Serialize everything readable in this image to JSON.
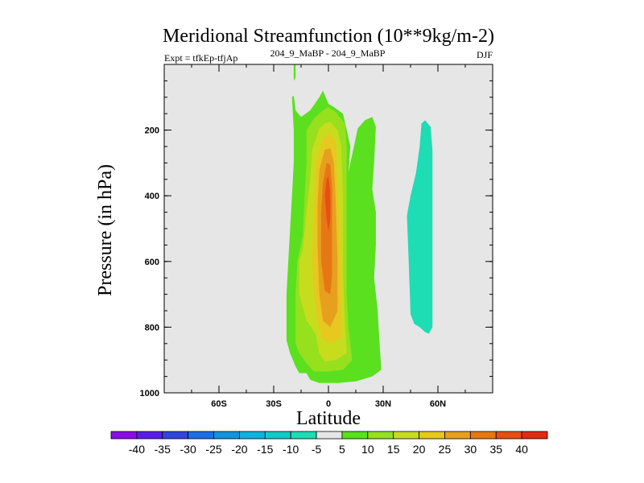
{
  "chart_data": {
    "type": "contour",
    "title": "Meridional Streamfunction (10**9kg/m-2)",
    "subtitle_left": "Expt = tfkEp-tfjAp",
    "subtitle_center": "204_9_MaBP - 204_9_MaBP",
    "subtitle_right": "DJF",
    "xlabel": "Latitude",
    "ylabel": "Pressure (in hPa)",
    "xlim": [
      -90,
      90
    ],
    "ylim": [
      0,
      1000
    ],
    "y_inverted": true,
    "x_ticks": [
      {
        "value": -60,
        "label": "60S"
      },
      {
        "value": -30,
        "label": "30S"
      },
      {
        "value": 0,
        "label": "0"
      },
      {
        "value": 30,
        "label": "30N"
      },
      {
        "value": 60,
        "label": "60N"
      }
    ],
    "y_ticks": [
      {
        "value": 200,
        "label": "200"
      },
      {
        "value": 400,
        "label": "400"
      },
      {
        "value": 600,
        "label": "600"
      },
      {
        "value": 800,
        "label": "800"
      },
      {
        "value": 1000,
        "label": "1000"
      }
    ],
    "background_color": "#e6e6e6",
    "colorbar": {
      "labels": [
        "-40",
        "-35",
        "-30",
        "-25",
        "-20",
        "-15",
        "-10",
        "-5",
        "5",
        "10",
        "15",
        "20",
        "25",
        "30",
        "35",
        "40"
      ],
      "colors": [
        "#8a0ee6",
        "#5a1ee6",
        "#3246dc",
        "#1e6ee6",
        "#1492dc",
        "#0ab4dc",
        "#14c8c8",
        "#1edcb4",
        "#e6e6e6",
        "#5ae01e",
        "#96e01e",
        "#c8dc1e",
        "#e6c81e",
        "#e6a01e",
        "#e67814",
        "#e65014",
        "#e62814"
      ]
    },
    "regions": [
      {
        "level": "5 to 10",
        "color": "#5ae01e",
        "points": [
          [
            -20,
            100
          ],
          [
            -19,
            95
          ],
          [
            -18,
            140
          ],
          [
            -15,
            160
          ],
          [
            -10,
            140
          ],
          [
            -5,
            100
          ],
          [
            -3,
            80
          ],
          [
            0,
            120
          ],
          [
            3,
            130
          ],
          [
            8,
            150
          ],
          [
            10,
            200
          ],
          [
            12,
            250
          ],
          [
            11,
            330
          ],
          [
            12,
            300
          ],
          [
            14,
            250
          ],
          [
            16,
            195
          ],
          [
            20,
            170
          ],
          [
            24,
            160
          ],
          [
            26,
            190
          ],
          [
            25,
            300
          ],
          [
            24,
            380
          ],
          [
            26,
            450
          ],
          [
            26,
            550
          ],
          [
            25,
            650
          ],
          [
            27,
            750
          ],
          [
            28,
            850
          ],
          [
            29,
            930
          ],
          [
            24,
            950
          ],
          [
            15,
            965
          ],
          [
            5,
            970
          ],
          [
            -5,
            970
          ],
          [
            -10,
            960
          ],
          [
            -12,
            940
          ],
          [
            -16,
            940
          ],
          [
            -18,
            920
          ],
          [
            -21,
            880
          ],
          [
            -23,
            840
          ],
          [
            -23,
            700
          ],
          [
            -22,
            600
          ],
          [
            -21,
            500
          ],
          [
            -20,
            400
          ],
          [
            -19,
            300
          ],
          [
            -19,
            200
          ]
        ]
      },
      {
        "level": "5 to 10",
        "color": "#5ae01e",
        "points": [
          [
            -19,
            0
          ],
          [
            -18,
            0
          ],
          [
            -18,
            40
          ],
          [
            -19,
            50
          ]
        ]
      },
      {
        "level": "10 to 15",
        "color": "#96e01e",
        "points": [
          [
            -12,
            200
          ],
          [
            -8,
            165
          ],
          [
            -3,
            140
          ],
          [
            0,
            130
          ],
          [
            4,
            145
          ],
          [
            9,
            180
          ],
          [
            10,
            250
          ],
          [
            10,
            400
          ],
          [
            10,
            700
          ],
          [
            11,
            800
          ],
          [
            13,
            900
          ],
          [
            8,
            930
          ],
          [
            0,
            935
          ],
          [
            -8,
            935
          ],
          [
            -12,
            910
          ],
          [
            -16,
            880
          ],
          [
            -18,
            850
          ],
          [
            -18,
            800
          ],
          [
            -18,
            700
          ],
          [
            -17,
            600
          ],
          [
            -14,
            520
          ],
          [
            -13,
            400
          ],
          [
            -12,
            300
          ]
        ]
      },
      {
        "level": "15 to 20",
        "color": "#c8dc1e",
        "points": [
          [
            -9,
            260
          ],
          [
            -5,
            195
          ],
          [
            -2,
            180
          ],
          [
            1,
            175
          ],
          [
            5,
            200
          ],
          [
            7,
            250
          ],
          [
            8,
            400
          ],
          [
            8,
            650
          ],
          [
            9,
            780
          ],
          [
            10,
            880
          ],
          [
            4,
            900
          ],
          [
            -2,
            905
          ],
          [
            -5,
            880
          ],
          [
            -7,
            820
          ],
          [
            -12,
            780
          ],
          [
            -14,
            740
          ],
          [
            -16,
            700
          ],
          [
            -16,
            600
          ],
          [
            -14,
            560
          ],
          [
            -12,
            450
          ],
          [
            -10,
            350
          ]
        ]
      },
      {
        "level": "20 to 25",
        "color": "#e6c81e",
        "points": [
          [
            -7,
            300
          ],
          [
            -3,
            225
          ],
          [
            1,
            210
          ],
          [
            4,
            240
          ],
          [
            5,
            350
          ],
          [
            6,
            500
          ],
          [
            7,
            700
          ],
          [
            7,
            830
          ],
          [
            2,
            850
          ],
          [
            -3,
            840
          ],
          [
            -6,
            780
          ],
          [
            -8,
            700
          ],
          [
            -9,
            600
          ],
          [
            -8,
            450
          ]
        ]
      },
      {
        "level": "25 to 30",
        "color": "#e6a01e",
        "points": [
          [
            -5,
            320
          ],
          [
            -2,
            260
          ],
          [
            1,
            255
          ],
          [
            3,
            300
          ],
          [
            4,
            420
          ],
          [
            5,
            600
          ],
          [
            5,
            750
          ],
          [
            1,
            800
          ],
          [
            -3,
            780
          ],
          [
            -5,
            700
          ],
          [
            -6,
            550
          ],
          [
            -6,
            430
          ]
        ]
      },
      {
        "level": "30 to 35",
        "color": "#e67814",
        "points": [
          [
            -3,
            360
          ],
          [
            -1,
            300
          ],
          [
            1,
            305
          ],
          [
            2,
            380
          ],
          [
            2,
            500
          ],
          [
            2,
            640
          ],
          [
            1,
            700
          ],
          [
            -2,
            690
          ],
          [
            -4,
            600
          ],
          [
            -4,
            450
          ]
        ]
      },
      {
        "level": "35 to 40",
        "color": "#e65014",
        "points": [
          [
            -1,
            350
          ],
          [
            0,
            340
          ],
          [
            1,
            390
          ],
          [
            1,
            470
          ],
          [
            0,
            510
          ],
          [
            -1,
            470
          ],
          [
            -2,
            400
          ]
        ]
      },
      {
        "level": "-10 to -5",
        "color": "#1edcb4",
        "points": [
          [
            51,
            180
          ],
          [
            53,
            170
          ],
          [
            56,
            190
          ],
          [
            57,
            260
          ],
          [
            57,
            400
          ],
          [
            57,
            550
          ],
          [
            57,
            700
          ],
          [
            57,
            800
          ],
          [
            55,
            820
          ],
          [
            53,
            815
          ],
          [
            50,
            800
          ],
          [
            47,
            790
          ],
          [
            45,
            760
          ],
          [
            44,
            600
          ],
          [
            43,
            460
          ],
          [
            45,
            400
          ],
          [
            48,
            330
          ],
          [
            50,
            250
          ]
        ]
      }
    ]
  }
}
